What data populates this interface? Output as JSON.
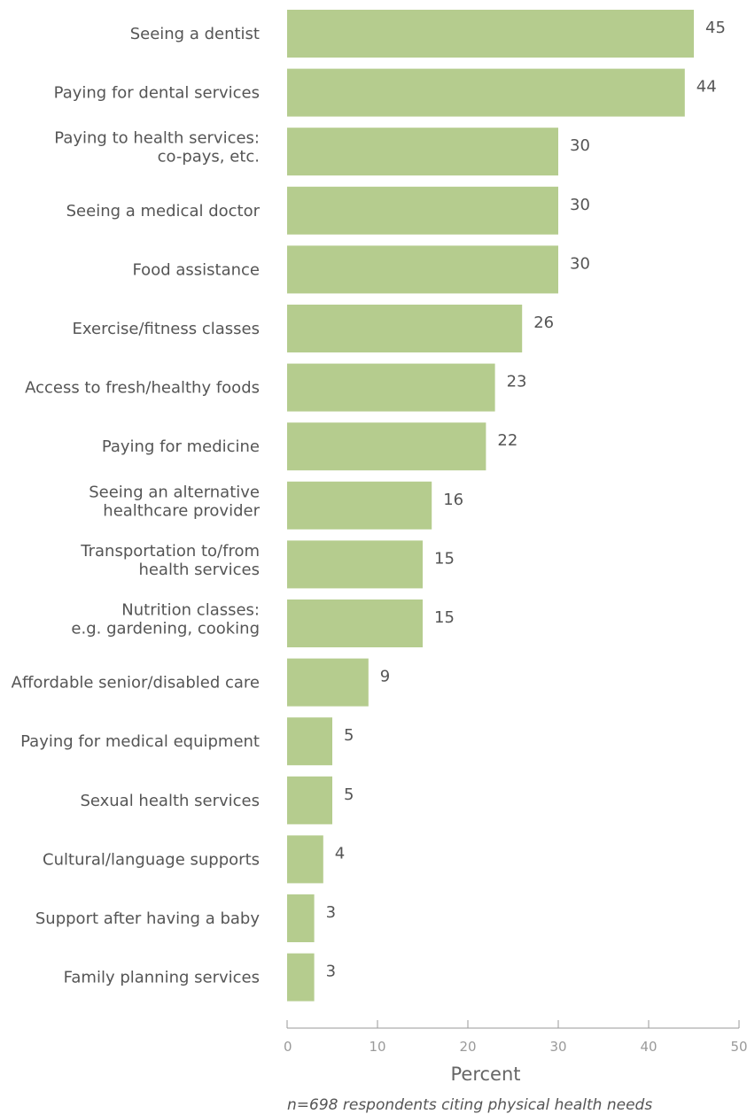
{
  "chart_data": {
    "type": "bar",
    "orientation": "horizontal",
    "categories": [
      [
        "Seeing a dentist"
      ],
      [
        "Paying for dental services"
      ],
      [
        "Paying to health services:",
        "co-pays, etc."
      ],
      [
        "Seeing a medical doctor"
      ],
      [
        "Food assistance"
      ],
      [
        "Exercise/fitness classes"
      ],
      [
        "Access to fresh/healthy foods"
      ],
      [
        "Paying for medicine"
      ],
      [
        "Seeing an alternative",
        "healthcare provider"
      ],
      [
        "Transportation to/from",
        "health services"
      ],
      [
        "Nutrition classes:",
        "e.g. gardening, cooking"
      ],
      [
        "Affordable senior/disabled care"
      ],
      [
        "Paying for medical equipment"
      ],
      [
        "Sexual health services"
      ],
      [
        "Cultural/language supports"
      ],
      [
        "Support after having a baby"
      ],
      [
        "Family planning services"
      ]
    ],
    "values": [
      45,
      44,
      30,
      30,
      30,
      26,
      23,
      22,
      16,
      15,
      15,
      9,
      5,
      5,
      4,
      3,
      3
    ],
    "xlabel": "Percent",
    "xlim": [
      0,
      50
    ],
    "xticks": [
      0,
      10,
      20,
      30,
      40,
      50
    ],
    "note": "n=698 respondents citing physical health needs",
    "grid": false,
    "bar_color": "#b5cc8e",
    "axis_color": "#9a9a9a"
  }
}
